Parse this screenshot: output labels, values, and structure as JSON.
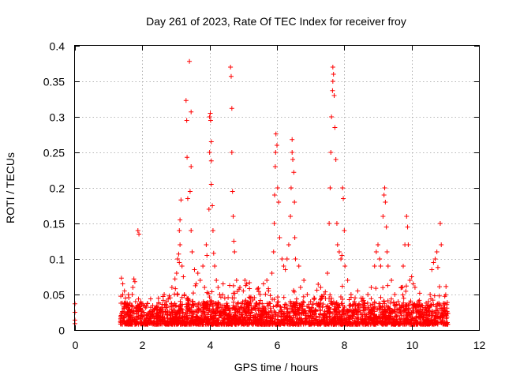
{
  "chart_data": {
    "type": "scatter",
    "title": "Day 261 of 2023, Rate Of TEC Index for receiver froy",
    "xlabel": "GPS time / hours",
    "ylabel": "ROTI / TECUs",
    "xlim": [
      0,
      12
    ],
    "ylim": [
      0,
      0.4
    ],
    "xticks": [
      0,
      2,
      4,
      6,
      8,
      10,
      12
    ],
    "xtick_labels": [
      "0",
      "2",
      "4",
      "6",
      "8",
      "10",
      "12"
    ],
    "yticks": [
      0,
      0.05,
      0.1,
      0.15,
      0.2,
      0.25,
      0.3,
      0.35,
      0.4
    ],
    "ytick_labels": [
      "0",
      "0.05",
      "0.1",
      "0.15",
      "0.2",
      "0.25",
      "0.3",
      "0.35",
      "0.4"
    ],
    "grid": true,
    "legend": "none",
    "marker": "plus",
    "color": "#ff0000",
    "series": [
      {
        "points": [
          [
            0.0,
            0.037
          ],
          [
            0.0,
            0.025
          ],
          [
            0.0,
            0.014
          ],
          [
            0.0,
            0.009
          ],
          [
            1.37,
            0.012
          ],
          [
            1.38,
            0.073
          ],
          [
            1.42,
            0.065
          ],
          [
            1.47,
            0.055
          ],
          [
            1.5,
            0.045
          ],
          [
            1.45,
            0.03
          ],
          [
            1.55,
            0.038
          ],
          [
            1.52,
            0.022
          ],
          [
            1.62,
            0.02
          ],
          [
            1.7,
            0.05
          ],
          [
            1.72,
            0.06
          ],
          [
            1.75,
            0.072
          ],
          [
            1.78,
            0.068
          ],
          [
            1.8,
            0.04
          ],
          [
            1.87,
            0.14
          ],
          [
            1.9,
            0.135
          ],
          [
            1.95,
            0.03
          ],
          [
            2.05,
            0.025
          ],
          [
            2.15,
            0.022
          ],
          [
            2.25,
            0.032
          ],
          [
            2.35,
            0.028
          ],
          [
            2.45,
            0.024
          ],
          [
            2.55,
            0.03
          ],
          [
            2.65,
            0.05
          ],
          [
            2.72,
            0.04
          ],
          [
            2.8,
            0.048
          ],
          [
            2.88,
            0.06
          ],
          [
            2.97,
            0.072
          ],
          [
            3.02,
            0.08
          ],
          [
            3.05,
            0.1
          ],
          [
            3.08,
            0.107
          ],
          [
            3.1,
            0.095
          ],
          [
            3.12,
            0.12
          ],
          [
            3.1,
            0.14
          ],
          [
            3.12,
            0.155
          ],
          [
            3.15,
            0.183
          ],
          [
            3.18,
            0.09
          ],
          [
            3.22,
            0.075
          ],
          [
            3.25,
            0.05
          ],
          [
            3.3,
            0.323
          ],
          [
            3.32,
            0.295
          ],
          [
            3.33,
            0.243
          ],
          [
            3.35,
            0.185
          ],
          [
            3.4,
            0.378
          ],
          [
            3.45,
            0.307
          ],
          [
            3.45,
            0.23
          ],
          [
            3.42,
            0.195
          ],
          [
            3.45,
            0.14
          ],
          [
            3.48,
            0.11
          ],
          [
            3.55,
            0.085
          ],
          [
            3.6,
            0.065
          ],
          [
            3.65,
            0.08
          ],
          [
            3.72,
            0.07
          ],
          [
            3.8,
            0.09
          ],
          [
            3.85,
            0.06
          ],
          [
            3.9,
            0.12
          ],
          [
            3.92,
            0.105
          ],
          [
            3.98,
            0.17
          ],
          [
            4.0,
            0.25
          ],
          [
            4.0,
            0.3
          ],
          [
            4.02,
            0.305
          ],
          [
            4.03,
            0.295
          ],
          [
            4.05,
            0.265
          ],
          [
            4.05,
            0.238
          ],
          [
            4.05,
            0.205
          ],
          [
            4.08,
            0.175
          ],
          [
            4.1,
            0.14
          ],
          [
            4.12,
            0.108
          ],
          [
            4.15,
            0.09
          ],
          [
            4.2,
            0.07
          ],
          [
            4.25,
            0.06
          ],
          [
            4.3,
            0.05
          ],
          [
            4.4,
            0.065
          ],
          [
            4.45,
            0.045
          ],
          [
            4.5,
            0.035
          ],
          [
            4.55,
            0.03
          ],
          [
            4.62,
            0.37
          ],
          [
            4.64,
            0.357
          ],
          [
            4.66,
            0.312
          ],
          [
            4.66,
            0.25
          ],
          [
            4.68,
            0.195
          ],
          [
            4.7,
            0.16
          ],
          [
            4.72,
            0.125
          ],
          [
            4.74,
            0.11
          ],
          [
            4.8,
            0.07
          ],
          [
            4.9,
            0.06
          ],
          [
            5.0,
            0.055
          ],
          [
            5.05,
            0.07
          ],
          [
            5.1,
            0.065
          ],
          [
            5.2,
            0.045
          ],
          [
            5.3,
            0.03
          ],
          [
            5.4,
            0.038
          ],
          [
            5.5,
            0.05
          ],
          [
            5.6,
            0.065
          ],
          [
            5.7,
            0.07
          ],
          [
            5.75,
            0.055
          ],
          [
            5.85,
            0.08
          ],
          [
            5.9,
            0.11
          ],
          [
            5.92,
            0.15
          ],
          [
            5.93,
            0.19
          ],
          [
            5.95,
            0.23
          ],
          [
            5.96,
            0.25
          ],
          [
            5.97,
            0.276
          ],
          [
            6.0,
            0.26
          ],
          [
            6.02,
            0.2
          ],
          [
            6.05,
            0.18
          ],
          [
            6.08,
            0.13
          ],
          [
            6.15,
            0.1
          ],
          [
            6.2,
            0.09
          ],
          [
            6.25,
            0.085
          ],
          [
            6.3,
            0.1
          ],
          [
            6.35,
            0.12
          ],
          [
            6.4,
            0.16
          ],
          [
            6.42,
            0.2
          ],
          [
            6.45,
            0.25
          ],
          [
            6.45,
            0.268
          ],
          [
            6.47,
            0.24
          ],
          [
            6.5,
            0.222
          ],
          [
            6.52,
            0.18
          ],
          [
            6.53,
            0.13
          ],
          [
            6.55,
            0.1
          ],
          [
            6.65,
            0.09
          ],
          [
            6.7,
            0.06
          ],
          [
            6.8,
            0.07
          ],
          [
            6.9,
            0.05
          ],
          [
            7.0,
            0.04
          ],
          [
            7.1,
            0.045
          ],
          [
            7.2,
            0.035
          ],
          [
            7.3,
            0.06
          ],
          [
            7.4,
            0.05
          ],
          [
            7.5,
            0.08
          ],
          [
            7.55,
            0.15
          ],
          [
            7.58,
            0.2
          ],
          [
            7.6,
            0.25
          ],
          [
            7.62,
            0.3
          ],
          [
            7.65,
            0.337
          ],
          [
            7.66,
            0.35
          ],
          [
            7.66,
            0.37
          ],
          [
            7.68,
            0.36
          ],
          [
            7.7,
            0.33
          ],
          [
            7.72,
            0.285
          ],
          [
            7.75,
            0.24
          ],
          [
            7.78,
            0.15
          ],
          [
            7.8,
            0.12
          ],
          [
            7.85,
            0.11
          ],
          [
            7.9,
            0.1
          ],
          [
            7.93,
            0.105
          ],
          [
            7.95,
            0.2
          ],
          [
            7.97,
            0.185
          ],
          [
            8.0,
            0.14
          ],
          [
            8.02,
            0.09
          ],
          [
            8.1,
            0.07
          ],
          [
            8.2,
            0.05
          ],
          [
            8.3,
            0.04
          ],
          [
            8.4,
            0.055
          ],
          [
            8.5,
            0.045
          ],
          [
            8.6,
            0.038
          ],
          [
            8.7,
            0.05
          ],
          [
            8.8,
            0.06
          ],
          [
            8.9,
            0.09
          ],
          [
            8.95,
            0.11
          ],
          [
            9.0,
            0.12
          ],
          [
            9.05,
            0.1
          ],
          [
            9.08,
            0.09
          ],
          [
            9.15,
            0.16
          ],
          [
            9.18,
            0.19
          ],
          [
            9.2,
            0.2
          ],
          [
            9.22,
            0.18
          ],
          [
            9.25,
            0.145
          ],
          [
            9.27,
            0.11
          ],
          [
            9.3,
            0.09
          ],
          [
            9.4,
            0.07
          ],
          [
            9.5,
            0.05
          ],
          [
            9.6,
            0.04
          ],
          [
            9.7,
            0.06
          ],
          [
            9.75,
            0.09
          ],
          [
            9.8,
            0.12
          ],
          [
            9.85,
            0.16
          ],
          [
            9.88,
            0.145
          ],
          [
            9.9,
            0.12
          ],
          [
            9.95,
            0.07
          ],
          [
            10.0,
            0.075
          ],
          [
            10.05,
            0.065
          ],
          [
            10.1,
            0.06
          ],
          [
            10.2,
            0.04
          ],
          [
            10.3,
            0.035
          ],
          [
            10.4,
            0.03
          ],
          [
            10.5,
            0.04
          ],
          [
            10.55,
            0.05
          ],
          [
            10.6,
            0.085
          ],
          [
            10.65,
            0.095
          ],
          [
            10.7,
            0.1
          ],
          [
            10.75,
            0.11
          ],
          [
            10.78,
            0.088
          ],
          [
            10.85,
            0.15
          ],
          [
            10.88,
            0.12
          ],
          [
            10.95,
            0.02
          ],
          [
            11.05,
            0.024
          ]
        ]
      }
    ]
  }
}
